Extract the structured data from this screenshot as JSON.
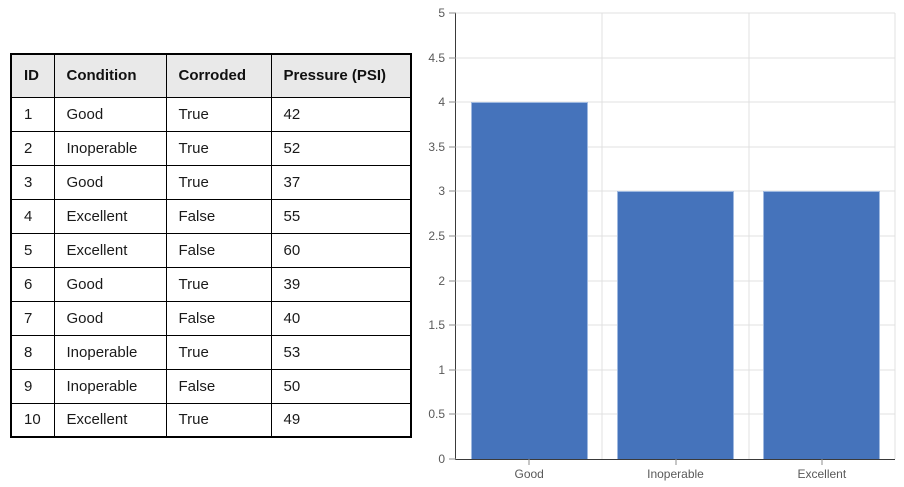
{
  "table": {
    "headers": [
      "ID",
      "Condition",
      "Corroded",
      "Pressure (PSI)"
    ],
    "rows": [
      [
        "1",
        "Good",
        "True",
        "42"
      ],
      [
        "2",
        "Inoperable",
        "True",
        "52"
      ],
      [
        "3",
        "Good",
        "True",
        "37"
      ],
      [
        "4",
        "Excellent",
        "False",
        "55"
      ],
      [
        "5",
        "Excellent",
        "False",
        "60"
      ],
      [
        "6",
        "Good",
        "True",
        "39"
      ],
      [
        "7",
        "Good",
        "False",
        "40"
      ],
      [
        "8",
        "Inoperable",
        "True",
        "53"
      ],
      [
        "9",
        "Inoperable",
        "False",
        "50"
      ],
      [
        "10",
        "Excellent",
        "True",
        "49"
      ]
    ]
  },
  "chart_data": {
    "type": "bar",
    "categories": [
      "Good",
      "Inoperable",
      "Excellent"
    ],
    "values": [
      4,
      3,
      3
    ],
    "title": "",
    "xlabel": "",
    "ylabel": "",
    "ylim": [
      0,
      5
    ],
    "yticks": [
      0,
      0.5,
      1,
      1.5,
      2,
      2.5,
      3,
      3.5,
      4,
      4.5,
      5
    ],
    "ytick_labels": [
      "0",
      "0.5",
      "1",
      "1.5",
      "2",
      "2.5",
      "3",
      "3.5",
      "4",
      "4.5",
      "5"
    ],
    "grid": true,
    "legend": "none",
    "bar_fill_fraction": 0.8
  },
  "colors": {
    "bar_fill": "#4573BB",
    "bar_border": "#9FB9E0",
    "gridline": "#e0e0e0",
    "axis_line": "#3a3a3a",
    "tick_label": "#595959",
    "table_header_bg": "#e9e9e9",
    "table_border": "#000000"
  }
}
